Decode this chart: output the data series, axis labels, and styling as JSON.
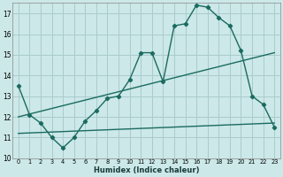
{
  "xlabel": "Humidex (Indice chaleur)",
  "background_color": "#cce8e8",
  "grid_color": "#aacccc",
  "line_color": "#1a6b60",
  "xlim": [
    -0.5,
    23.5
  ],
  "ylim": [
    10,
    17.5
  ],
  "yticks": [
    10,
    11,
    12,
    13,
    14,
    15,
    16,
    17
  ],
  "xticks": [
    0,
    1,
    2,
    3,
    4,
    5,
    6,
    7,
    8,
    9,
    10,
    11,
    12,
    13,
    14,
    15,
    16,
    17,
    18,
    19,
    20,
    21,
    22,
    23
  ],
  "series1_x": [
    0,
    1,
    2,
    3,
    4,
    5,
    6,
    7,
    8,
    9,
    10,
    11,
    12,
    13,
    14,
    15,
    16,
    17,
    18,
    19,
    20,
    21,
    22,
    23
  ],
  "series1_y": [
    13.5,
    12.1,
    11.7,
    11.0,
    10.5,
    11.0,
    11.8,
    12.3,
    12.9,
    13.0,
    13.8,
    15.1,
    15.1,
    13.7,
    16.4,
    16.5,
    17.4,
    17.3,
    16.8,
    16.4,
    15.2,
    13.0,
    12.6,
    11.5
  ],
  "series2_x": [
    0,
    23
  ],
  "series2_y": [
    12.0,
    15.1
  ],
  "series3_x": [
    0,
    23
  ],
  "series3_y": [
    11.2,
    11.7
  ]
}
